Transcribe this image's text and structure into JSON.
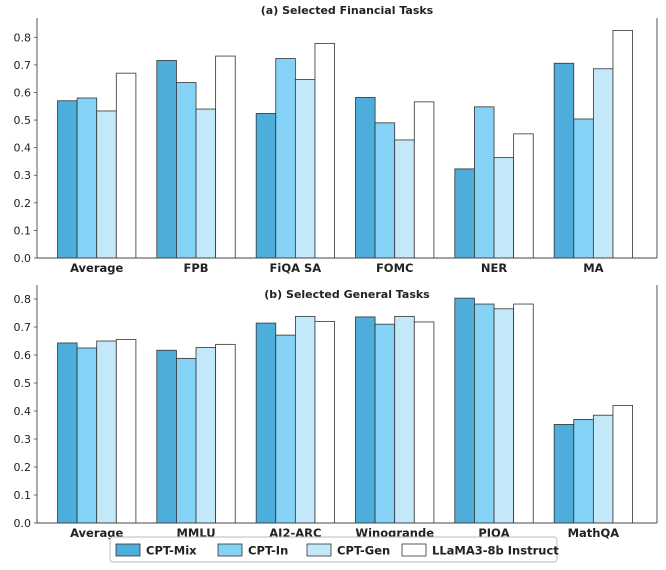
{
  "legend": [
    {
      "name": "CPT-Mix",
      "color": "#4DAEDC"
    },
    {
      "name": "CPT-In",
      "color": "#84D2F6"
    },
    {
      "name": "CPT-Gen",
      "color": "#C2E8FA"
    },
    {
      "name": "LLaMA3-8b Instruct",
      "color": "#FFFFFF"
    }
  ],
  "chart_data": [
    {
      "type": "bar",
      "title": "(a) Selected Financial Tasks",
      "categories": [
        "Average",
        "FPB",
        "FiQA SA",
        "FOMC",
        "NER",
        "MA"
      ],
      "series": [
        {
          "name": "CPT-Mix",
          "color": "#4DAEDC",
          "values": [
            0.57,
            0.716,
            0.524,
            0.582,
            0.323,
            0.706
          ]
        },
        {
          "name": "CPT-In",
          "color": "#84D2F6",
          "values": [
            0.58,
            0.636,
            0.723,
            0.49,
            0.548,
            0.504
          ]
        },
        {
          "name": "CPT-Gen",
          "color": "#C2E8FA",
          "values": [
            0.533,
            0.54,
            0.647,
            0.428,
            0.364,
            0.686
          ]
        },
        {
          "name": "LLaMA3-8b Instruct",
          "color": "#FFFFFF",
          "values": [
            0.67,
            0.732,
            0.778,
            0.566,
            0.45,
            0.825
          ]
        }
      ],
      "ylim": [
        0,
        0.87
      ],
      "yticks": [
        0.0,
        0.1,
        0.2,
        0.3,
        0.4,
        0.5,
        0.6,
        0.7,
        0.8
      ],
      "ytick_labels": [
        "0.0",
        "0.1",
        "0.2",
        "0.3",
        "0.4",
        "0.5",
        "0.6",
        "0.7",
        "0.8"
      ],
      "grid": false
    },
    {
      "type": "bar",
      "title": "(b) Selected General Tasks",
      "categories": [
        "Average",
        "MMLU",
        "AI2-ARC",
        "Winogrande",
        "PIQA",
        "MathQA"
      ],
      "series": [
        {
          "name": "CPT-Mix",
          "color": "#4DAEDC",
          "values": [
            0.643,
            0.617,
            0.714,
            0.736,
            0.803,
            0.352
          ]
        },
        {
          "name": "CPT-In",
          "color": "#84D2F6",
          "values": [
            0.625,
            0.588,
            0.671,
            0.71,
            0.782,
            0.37
          ]
        },
        {
          "name": "CPT-Gen",
          "color": "#C2E8FA",
          "values": [
            0.65,
            0.627,
            0.738,
            0.738,
            0.765,
            0.385
          ]
        },
        {
          "name": "LLaMA3-8b Instruct",
          "color": "#FFFFFF",
          "values": [
            0.655,
            0.638,
            0.72,
            0.718,
            0.782,
            0.42
          ]
        }
      ],
      "ylim": [
        0,
        0.85
      ],
      "yticks": [
        0.0,
        0.1,
        0.2,
        0.3,
        0.4,
        0.5,
        0.6,
        0.7,
        0.8
      ],
      "ytick_labels": [
        "0.0",
        "0.1",
        "0.2",
        "0.3",
        "0.4",
        "0.5",
        "0.6",
        "0.7",
        "0.8"
      ],
      "grid": false
    }
  ]
}
